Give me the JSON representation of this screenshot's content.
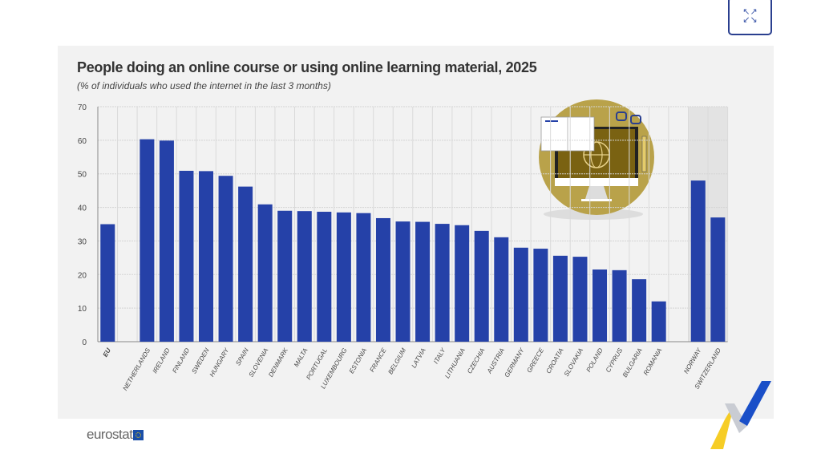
{
  "expand_button": {
    "icon": "expand-arrows-icon",
    "glyph_top": "↖↗",
    "glyph_bottom": "↙↘"
  },
  "brand": {
    "logo_text": "eurostat"
  },
  "colors": {
    "bar": "#2541a8",
    "illustration_gold": "#b9a24a",
    "panel": "#f2f2f2"
  },
  "chart_data": {
    "type": "bar",
    "title": "People doing an online course or using online learning material, 2025",
    "subtitle": "(% of individuals who used the internet in the last 3 months)",
    "xlabel": "",
    "ylabel": "",
    "ylim": [
      0,
      70
    ],
    "yticks": [
      "0",
      "10",
      "20",
      "30",
      "40",
      "50",
      "60",
      "70"
    ],
    "grid": true,
    "categories": [
      "EU",
      "",
      "NETHERLANDS",
      "IRELAND",
      "FINLAND",
      "SWEDEN",
      "HUNGARY",
      "SPAIN",
      "SLOVENIA",
      "DENMARK",
      "MALTA",
      "PORTUGAL",
      "LUXEMBOURG",
      "ESTONIA",
      "FRANCE",
      "BELGIUM",
      "LATVIA",
      "ITALY",
      "LITHUANIA",
      "CZECHIA",
      "AUSTRIA",
      "GERMANY",
      "GREECE",
      "CROATIA",
      "SLOVAKIA",
      "POLAND",
      "CYPRUS",
      "BULGARIA",
      "ROMANIA",
      "",
      "NORWAY",
      "SWITZERLAND"
    ],
    "values": [
      35.0,
      null,
      60.3,
      59.9,
      50.9,
      50.8,
      49.4,
      46.2,
      40.9,
      39.0,
      38.9,
      38.7,
      38.5,
      38.3,
      36.8,
      35.8,
      35.7,
      35.1,
      34.7,
      33.0,
      31.1,
      28.0,
      27.7,
      25.6,
      25.3,
      21.5,
      21.3,
      18.6,
      12.0,
      null,
      48.0,
      37.0
    ],
    "highlighted_categories": [
      "NORWAY",
      "SWITZERLAND"
    ]
  }
}
